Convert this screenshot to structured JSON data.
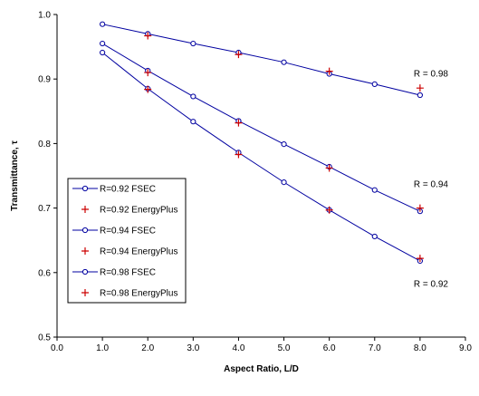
{
  "chart_data": {
    "type": "line",
    "xlabel": "Aspect Ratio, L/D",
    "ylabel": "Transmittance, τ",
    "xlim": [
      0.0,
      9.0
    ],
    "ylim": [
      0.5,
      1.0
    ],
    "xticks": [
      "0.0",
      "1.0",
      "2.0",
      "3.0",
      "4.0",
      "5.0",
      "6.0",
      "7.0",
      "8.0",
      "9.0"
    ],
    "yticks": [
      "0.5",
      "0.6",
      "0.7",
      "0.8",
      "0.9",
      "1.0"
    ],
    "grid": false,
    "legend_position": "left",
    "colors": {
      "fsec": "#0000a0",
      "energyplus": "#cc0000"
    },
    "series": [
      {
        "name": "R=0.92 FSEC",
        "marker": "circle",
        "line": true,
        "x": [
          1,
          2,
          3,
          4,
          5,
          6,
          7,
          8
        ],
        "y": [
          0.941,
          0.885,
          0.834,
          0.786,
          0.74,
          0.697,
          0.656,
          0.618
        ]
      },
      {
        "name": "R=0.92 EnergyPlus",
        "marker": "plus",
        "line": false,
        "x": [
          2,
          4,
          6,
          8
        ],
        "y": [
          0.884,
          0.783,
          0.697,
          0.622
        ]
      },
      {
        "name": "R=0.94 FSEC",
        "marker": "circle",
        "line": true,
        "x": [
          1,
          2,
          3,
          4,
          5,
          6,
          7,
          8
        ],
        "y": [
          0.955,
          0.913,
          0.873,
          0.835,
          0.799,
          0.764,
          0.728,
          0.695
        ]
      },
      {
        "name": "R=0.94 EnergyPlus",
        "marker": "plus",
        "line": false,
        "x": [
          2,
          4,
          6,
          8
        ],
        "y": [
          0.91,
          0.832,
          0.762,
          0.7
        ]
      },
      {
        "name": "R=0.98 FSEC",
        "marker": "circle",
        "line": true,
        "x": [
          1,
          2,
          3,
          4,
          5,
          6,
          7,
          8
        ],
        "y": [
          0.985,
          0.97,
          0.955,
          0.941,
          0.926,
          0.908,
          0.892,
          0.875
        ]
      },
      {
        "name": "R=0.98 EnergyPlus",
        "marker": "plus",
        "line": false,
        "x": [
          2,
          4,
          6,
          8
        ],
        "y": [
          0.967,
          0.938,
          0.912,
          0.886
        ]
      }
    ],
    "annotations": [
      {
        "text": "R = 0.98",
        "x": 8.1,
        "y": 0.908
      },
      {
        "text": "R = 0.94",
        "x": 8.1,
        "y": 0.737
      },
      {
        "text": "R = 0.92",
        "x": 8.1,
        "y": 0.582
      }
    ]
  }
}
